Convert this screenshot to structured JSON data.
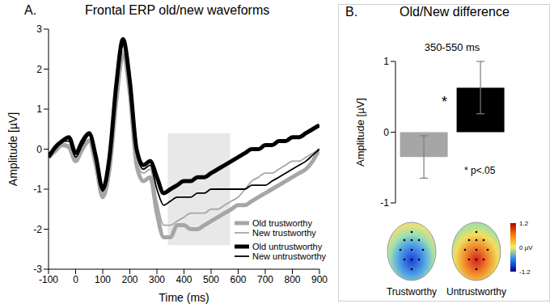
{
  "chart_data": [
    {
      "type": "line",
      "panel": "A.",
      "title": "Frontal ERP old/new waveforms",
      "x_label": "Time (ms)",
      "y_label": "Amplitude [µV]",
      "x": [
        -100,
        -75,
        -50,
        -25,
        0,
        25,
        50,
        75,
        100,
        125,
        150,
        175,
        200,
        225,
        250,
        275,
        300,
        325,
        350,
        375,
        400,
        425,
        450,
        475,
        500,
        525,
        550,
        575,
        600,
        625,
        650,
        675,
        700,
        725,
        750,
        775,
        800,
        825,
        850,
        875,
        900
      ],
      "series": [
        {
          "name": "Old trustworthy",
          "color": "#a6a6a6",
          "line_style": "thick",
          "values": [
            -0.2,
            -0.05,
            0.1,
            0.05,
            -0.3,
            0,
            0.2,
            -0.4,
            -1.2,
            -0.5,
            1.2,
            2.35,
            1.4,
            -0.4,
            -0.8,
            -0.7,
            -1.6,
            -2.2,
            -2.2,
            -1.9,
            -1.9,
            -2.0,
            -2.0,
            -1.9,
            -1.8,
            -1.7,
            -1.6,
            -1.5,
            -1.4,
            -1.4,
            -1.3,
            -1.2,
            -1.1,
            -1.0,
            -0.9,
            -0.8,
            -0.7,
            -0.6,
            -0.5,
            -0.3,
            0
          ]
        },
        {
          "name": "New trustworthy",
          "color": "#a6a6a6",
          "line_style": "thin",
          "values": [
            -0.1,
            0,
            0.15,
            0.1,
            -0.2,
            0.1,
            0.25,
            -0.3,
            -1.1,
            -0.4,
            1.3,
            2.45,
            1.5,
            -0.3,
            -0.6,
            -0.5,
            -1.3,
            -1.9,
            -1.9,
            -1.8,
            -1.7,
            -1.6,
            -1.6,
            -1.6,
            -1.5,
            -1.5,
            -1.4,
            -1.3,
            -1.2,
            -1.0,
            -0.8,
            -0.7,
            -0.6,
            -0.6,
            -0.5,
            -0.4,
            -0.3,
            -0.3,
            -0.2,
            -0.1,
            0
          ]
        },
        {
          "name": "Old untrustworthy",
          "color": "#000000",
          "line_style": "thick",
          "values": [
            -0.2,
            0.05,
            0.2,
            0.3,
            -0.1,
            0.2,
            0.4,
            -0.2,
            -1.0,
            -0.2,
            1.6,
            2.75,
            1.7,
            0,
            -0.4,
            -0.3,
            -0.7,
            -1.1,
            -1.0,
            -0.9,
            -0.8,
            -0.8,
            -0.7,
            -0.7,
            -0.6,
            -0.5,
            -0.4,
            -0.3,
            -0.2,
            -0.1,
            0,
            0,
            0.1,
            0.1,
            0.2,
            0.2,
            0.3,
            0.3,
            0.4,
            0.5,
            0.6
          ]
        },
        {
          "name": "New untrustworthy",
          "color": "#000000",
          "line_style": "thin",
          "values": [
            -0.1,
            0,
            0.2,
            0.2,
            -0.2,
            0.1,
            0.35,
            -0.25,
            -1.05,
            -0.3,
            1.4,
            2.6,
            1.6,
            -0.1,
            -0.5,
            -0.4,
            -1.0,
            -1.4,
            -1.3,
            -1.2,
            -1.2,
            -1.2,
            -1.1,
            -1.1,
            -1.0,
            -1.0,
            -1.0,
            -1.0,
            -1.0,
            -1.0,
            -0.9,
            -0.9,
            -0.9,
            -0.8,
            -0.7,
            -0.6,
            -0.5,
            -0.4,
            -0.3,
            -0.15,
            0
          ]
        }
      ],
      "xlim": [
        -100,
        900
      ],
      "xticks": [
        -100,
        0,
        100,
        200,
        300,
        400,
        500,
        600,
        700,
        800,
        900
      ],
      "ylim": [
        -3,
        3
      ],
      "yticks": [
        -3,
        -2,
        -1,
        0,
        1,
        2,
        3
      ],
      "window": {
        "x": [
          340,
          570
        ],
        "y": [
          -2.4,
          0.4
        ]
      },
      "legend": "lower right"
    },
    {
      "type": "bar",
      "panel": "B.",
      "title": "Old/New difference",
      "subtitle": "350-550 ms",
      "y_label": "Amplitude [µV]",
      "categories": [
        null,
        null
      ],
      "values": [
        -0.35,
        0.63
      ],
      "errors": [
        0.3,
        0.37
      ],
      "colors": [
        "#a6a6a6",
        "#000000"
      ],
      "ylim": [
        -1,
        1
      ],
      "yticks": [
        -1,
        0,
        1
      ],
      "tick_labels": "y",
      "annotations": [
        "*",
        "* p<.05"
      ]
    }
  ],
  "topomaps": {
    "labels": [
      "Trustworthy",
      "Untrustworthy"
    ],
    "colorbar": {
      "range": [
        -1.2,
        1.2
      ],
      "ticks": [
        1.2,
        {
          "value": 0,
          "label": "0 µV"
        },
        -1.2
      ]
    }
  }
}
